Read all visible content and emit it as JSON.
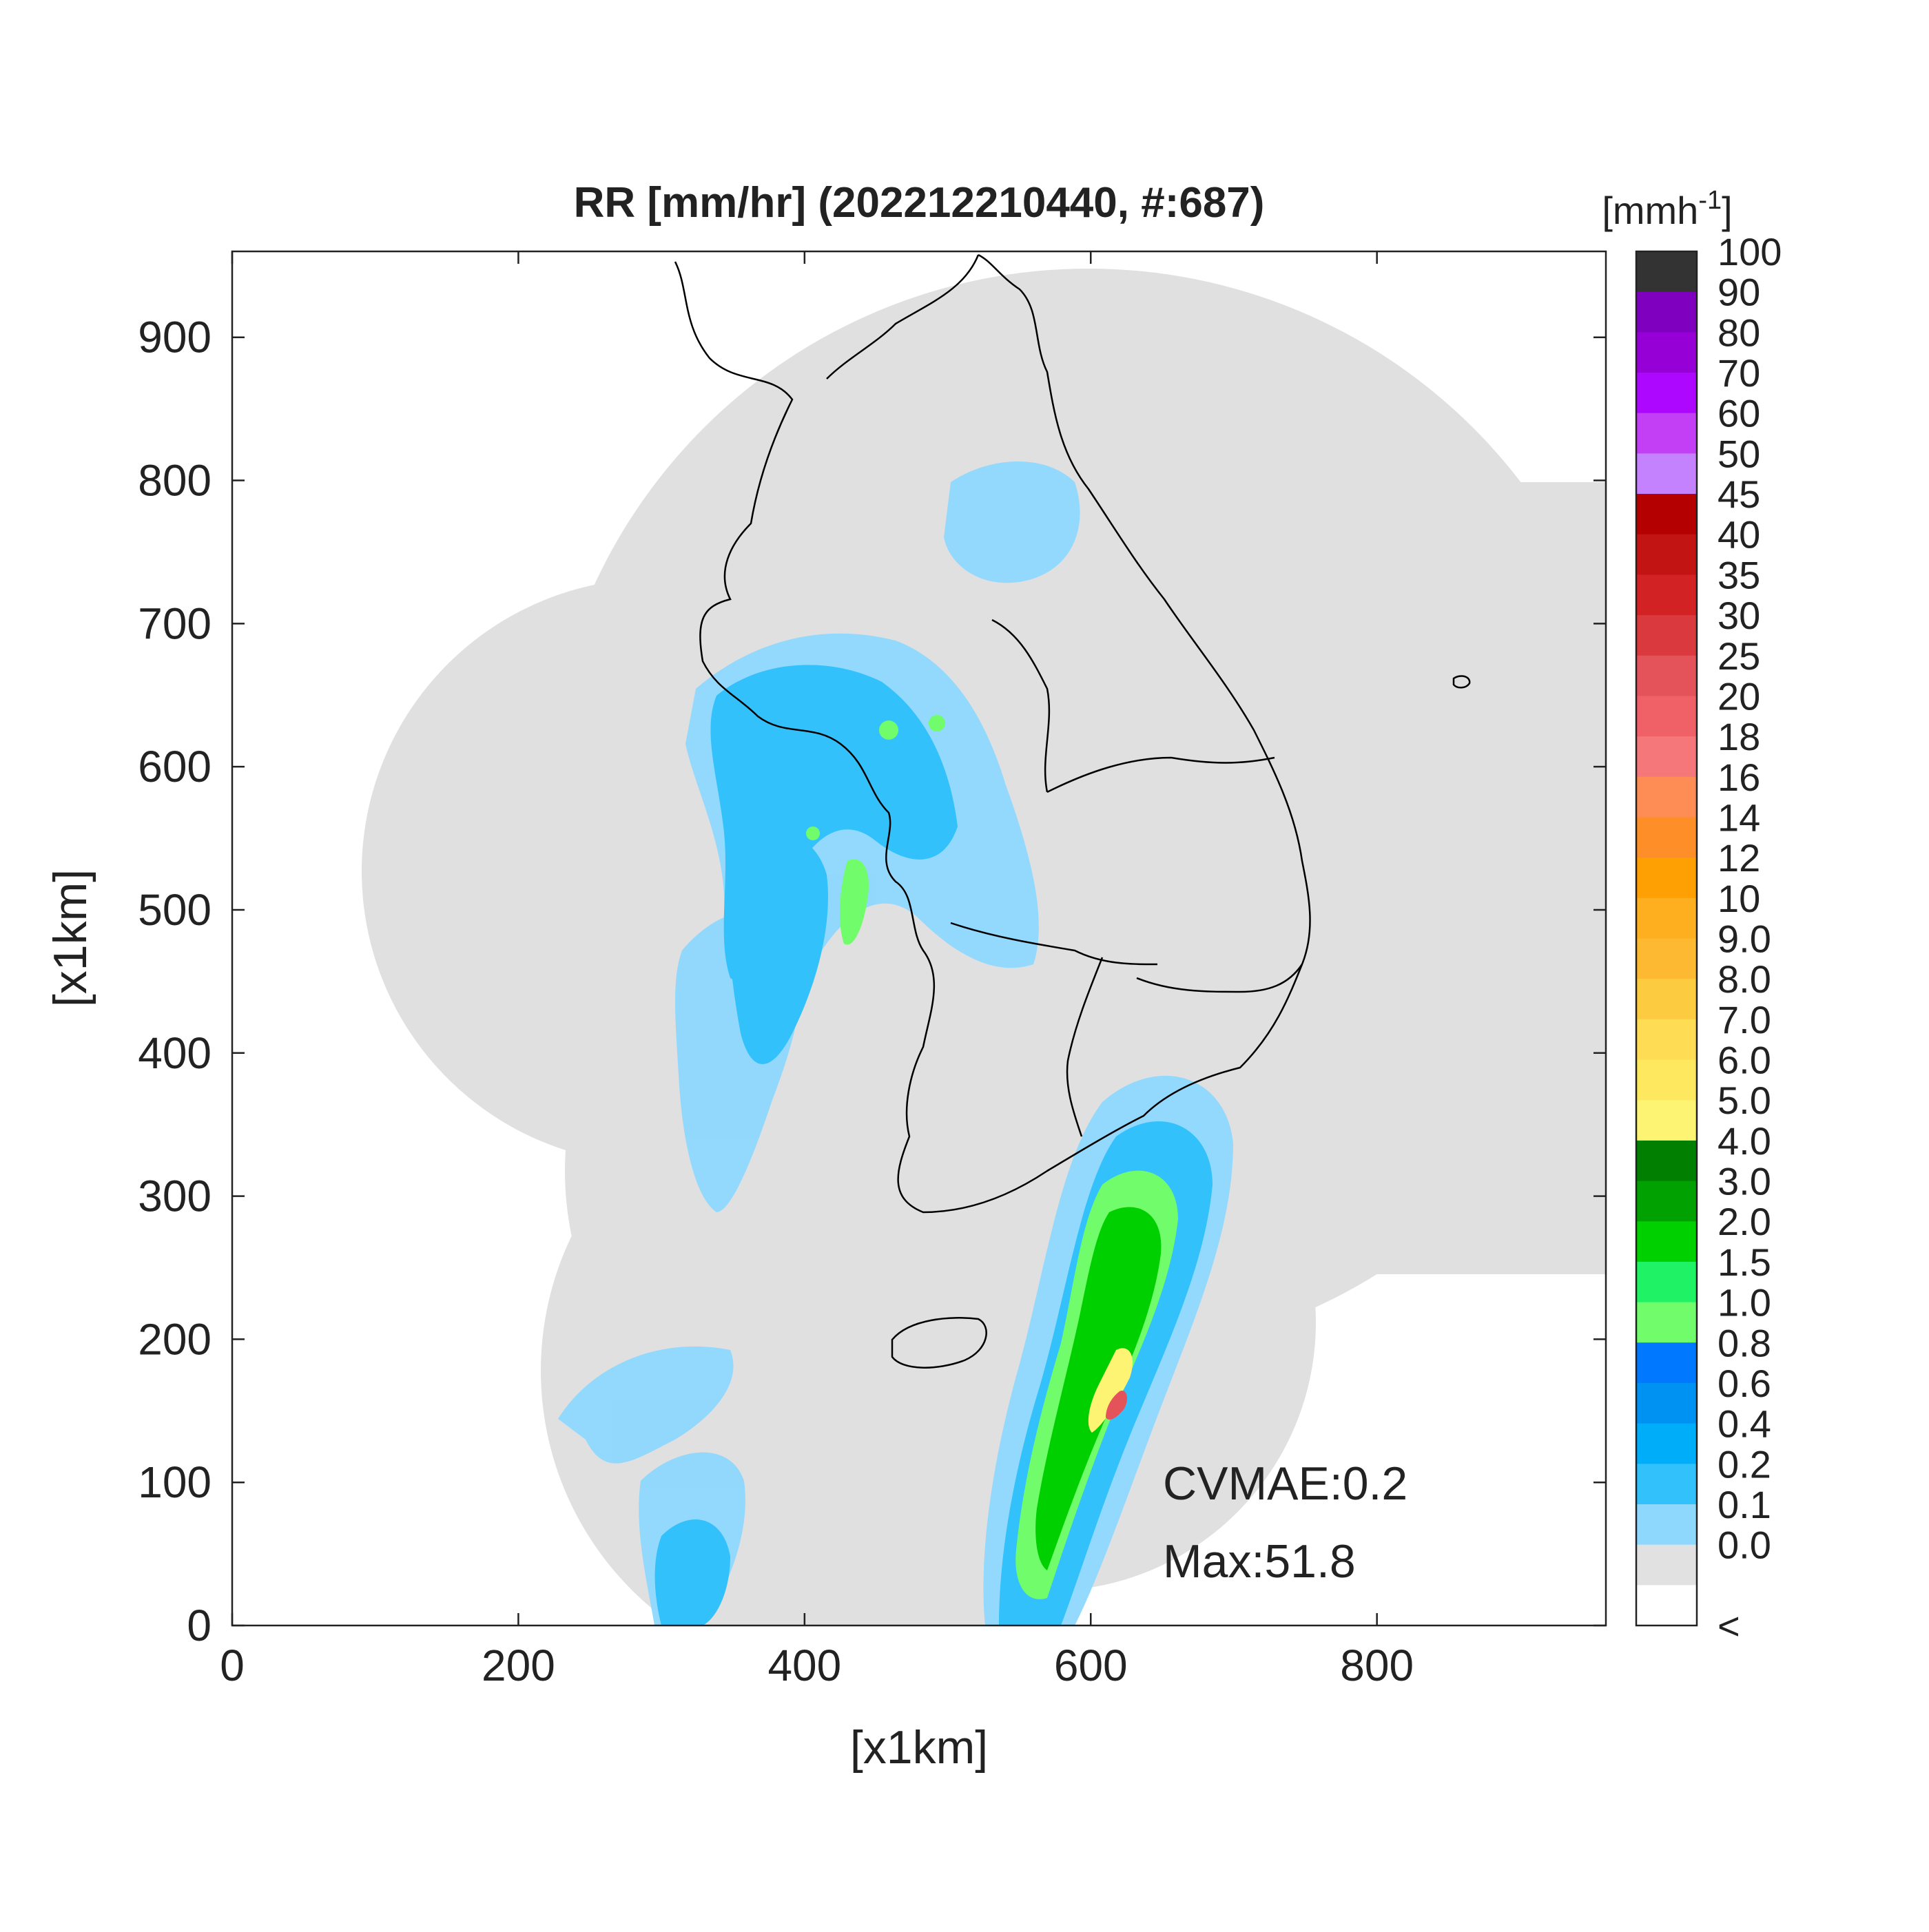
{
  "title": "RR [mm/hr] (202212210440, #:687)",
  "xlabel": "[x1km]",
  "ylabel": "[x1km]",
  "x_ticks": [
    "0",
    "200",
    "400",
    "600",
    "800"
  ],
  "y_ticks": [
    "0",
    "100",
    "200",
    "300",
    "400",
    "500",
    "600",
    "700",
    "800",
    "900"
  ],
  "x_range": [
    0,
    960
  ],
  "y_range": [
    0,
    960
  ],
  "annotations": {
    "cvmae": "CVMAE:0.2",
    "max": "Max:51.8"
  },
  "colorbar": {
    "unit_label": "[mmh",
    "unit_exponent": "-1",
    "unit_close": "]",
    "bottom_label": "<",
    "levels": [
      "100",
      "90",
      "80",
      "70",
      "60",
      "50",
      "45",
      "40",
      "35",
      "30",
      "25",
      "20",
      "18",
      "16",
      "14",
      "12",
      "10",
      "9.0",
      "8.0",
      "7.0",
      "6.0",
      "5.0",
      "4.0",
      "3.0",
      "2.0",
      "1.5",
      "1.0",
      "0.8",
      "0.6",
      "0.4",
      "0.2",
      "0.1",
      "0.0"
    ],
    "colors": [
      "#333333",
      "#7f00bf",
      "#9600d6",
      "#ad07ff",
      "#c23ff5",
      "#c582ff",
      "#b40000",
      "#c31414",
      "#d22223",
      "#da3a3d",
      "#e4525a",
      "#ef6067",
      "#f57779",
      "#fd8c55",
      "#fd8e28",
      "#fea004",
      "#feaf20",
      "#fdb931",
      "#fccb40",
      "#fedc54",
      "#fde860",
      "#fdf474",
      "#007f00",
      "#00a100",
      "#00cf00",
      "#20f265",
      "#71fc6b",
      "#0078ff",
      "#0092f2",
      "#00adf8",
      "#32c1fb",
      "#8ed8fe",
      "#e1e1e1",
      "#ffffff"
    ]
  },
  "colors": {
    "coverage": "#e0e0e0",
    "light_rain": "#8ed8fe",
    "moderate_rain": "#32c1fb",
    "rain": "#0092f2",
    "green": "#00cf00",
    "light_green": "#71fc6b",
    "dark_green": "#00a100",
    "yellow": "#fdf474",
    "orange": "#fea004",
    "red": "#e4525a",
    "coastline": "#000000"
  }
}
